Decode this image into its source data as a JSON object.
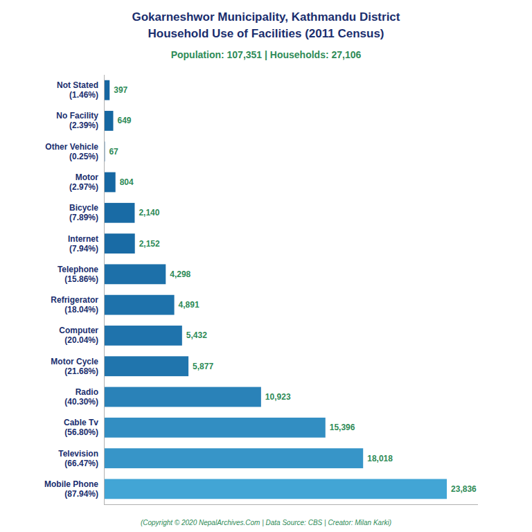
{
  "chart_data": {
    "type": "bar",
    "orientation": "horizontal",
    "title": "Gokarneshwor Municipality, Kathmandu District\nHousehold Use of Facilities (2011 Census)",
    "subtitle": "Population: 107,351 | Households: 27,106",
    "annotations": [
      "(Copyright © 2020 NepalArchives.Com | Data Source: CBS | Creator: Milan Karki)"
    ],
    "categories": [
      "Mobile Phone\n(87.94%)",
      "Television\n(66.47%)",
      "Cable Tv\n(56.80%)",
      "Radio\n(40.30%)",
      "Motor Cycle\n(21.68%)",
      "Computer\n(20.04%)",
      "Refrigerator\n(18.04%)",
      "Telephone\n(15.86%)",
      "Internet\n(7.94%)",
      "Bicycle\n(7.89%)",
      "Motor\n(2.97%)",
      "Other Vehicle\n(0.25%)",
      "No Facility\n(2.39%)",
      "Not Stated\n(1.46%)"
    ],
    "values": [
      23836,
      18018,
      15396,
      10923,
      5877,
      5432,
      4891,
      4298,
      2152,
      2140,
      804,
      67,
      649,
      397
    ],
    "value_labels": [
      "23,836",
      "18,018",
      "15,396",
      "10,923",
      "5,877",
      "5,432",
      "4,891",
      "4,298",
      "2,152",
      "2,140",
      "804",
      "67",
      "649",
      "397"
    ],
    "colors": [
      "#42a5d5",
      "#3795c8",
      "#328ec2",
      "#2a82b8",
      "#2075ad",
      "#1f73ac",
      "#1e72ab",
      "#1d70a9",
      "#196ba5",
      "#196ba5",
      "#1667a2",
      "#1565a0",
      "#1667a1",
      "#1666a1"
    ],
    "xlim": [
      0,
      26000
    ],
    "data_labels": true,
    "tick_labels": "y",
    "grid": false
  }
}
